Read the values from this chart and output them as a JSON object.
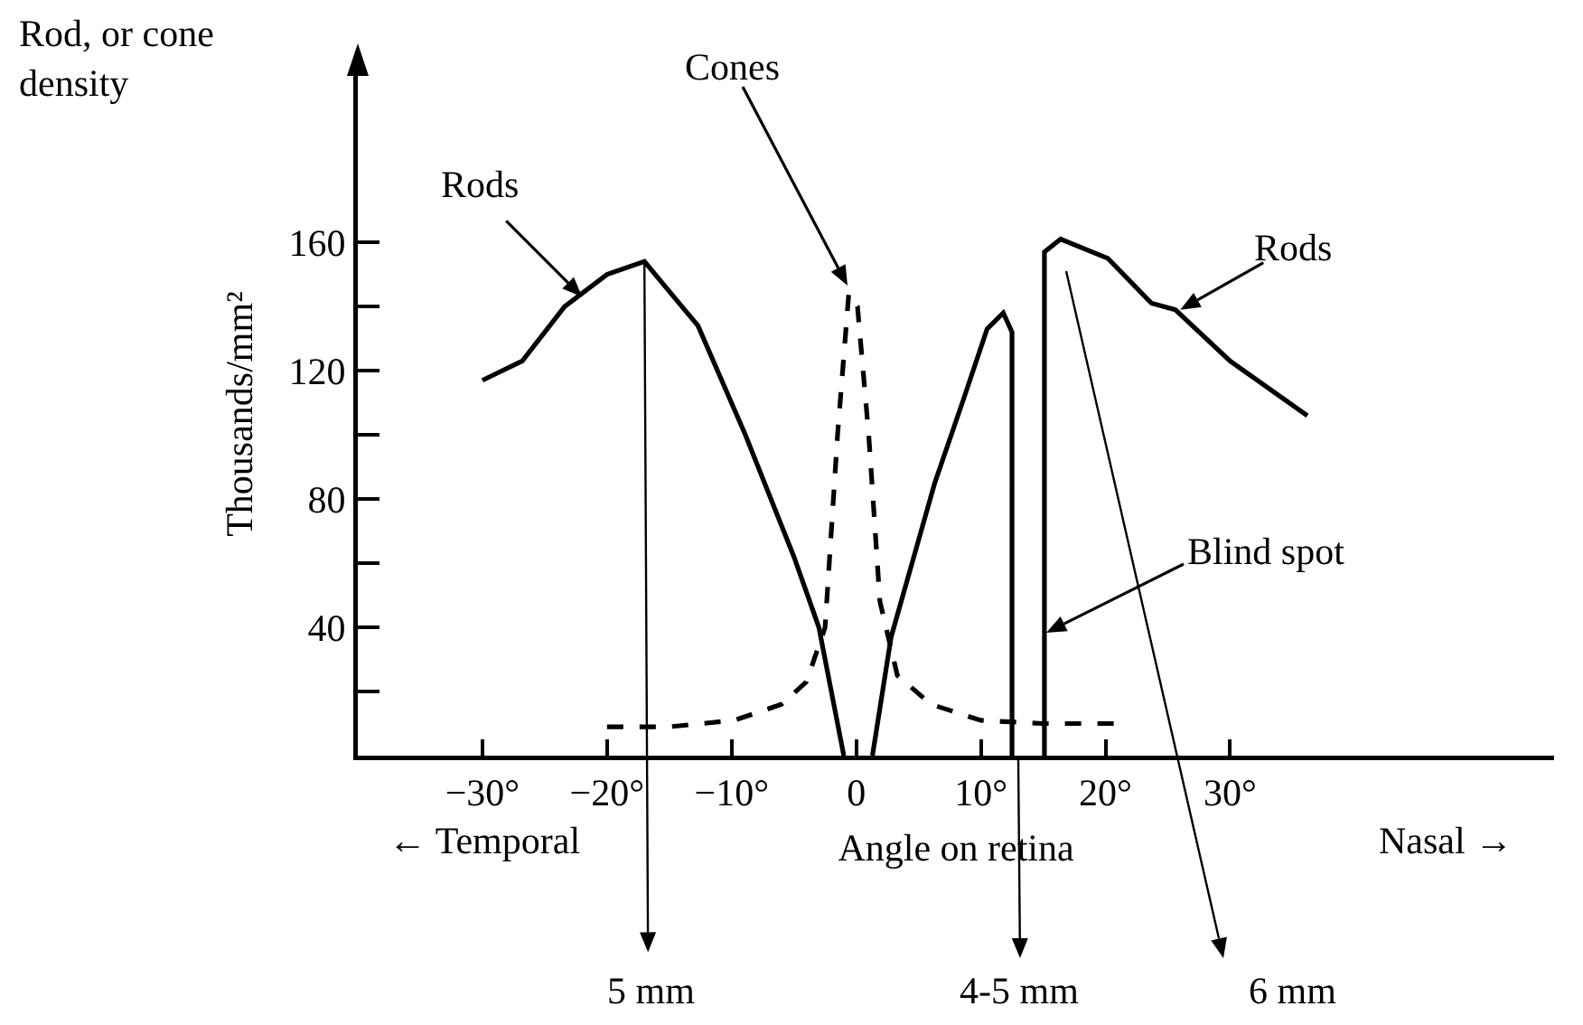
{
  "chart_data": {
    "type": "line",
    "title": "Rod, or cone density",
    "xlabel": "Angle on retina",
    "ylabel": "Thousands/mm²",
    "xlim": [
      -40,
      56
    ],
    "xticks": [
      {
        "value": -30,
        "label": "−30°"
      },
      {
        "value": -20,
        "label": "−20°"
      },
      {
        "value": -10,
        "label": "−10°"
      },
      0,
      {
        "value": 10,
        "label": "10°"
      },
      {
        "value": 20,
        "label": "20°"
      },
      {
        "value": 30,
        "label": "30°"
      }
    ],
    "ylim": [
      0,
      213
    ],
    "yticks": [
      {
        "value": 20,
        "label": null
      },
      40,
      {
        "value": 60,
        "label": null
      },
      80,
      {
        "value": 100,
        "label": null
      },
      120,
      {
        "value": 140,
        "label": null
      },
      160
    ],
    "marker": "none",
    "series": [
      {
        "color": "#000000",
        "line_style": "solid",
        "x": [
          -30,
          -26.8,
          -23.4,
          -20,
          -17,
          -12.7,
          -8.9,
          -5,
          -3,
          -1,
          null,
          1.3,
          2.8,
          6.3,
          8.6,
          10.5,
          11.8,
          12.5,
          12.5,
          null,
          15.1,
          15.1,
          16.4,
          20.2,
          23.7,
          25.6,
          30,
          36.2
        ],
        "values": [
          117,
          123,
          140,
          150,
          154,
          134,
          100,
          62,
          40,
          0,
          null,
          0,
          37,
          85,
          111,
          133,
          138,
          132,
          0,
          null,
          0,
          157,
          161,
          155,
          141,
          139,
          123,
          106
        ]
      },
      {
        "color": "#000000",
        "line_style": "dashed",
        "x": [
          -20,
          -15,
          -9.8,
          -6,
          -4,
          -2.5,
          -1.5,
          -0.6,
          0.1,
          1,
          1.9,
          3.3,
          6,
          10,
          15,
          21
        ],
        "values": [
          9,
          9,
          11,
          16,
          23,
          40,
          100,
          144,
          140,
          100,
          48,
          25,
          16,
          11,
          10,
          10
        ]
      }
    ],
    "annotations": [
      {
        "text": "Rods",
        "x": -22,
        "y": 143
      },
      "Cones",
      {
        "text": "Rods",
        "x": 26,
        "y": 139
      },
      "Blind spot",
      {
        "text": "5 mm",
        "x": -17,
        "y": 154
      },
      {
        "text": "4-5 mm",
        "x": 13,
        "y": 0
      },
      "6 mm",
      "← Temporal",
      "Nasal →"
    ]
  }
}
